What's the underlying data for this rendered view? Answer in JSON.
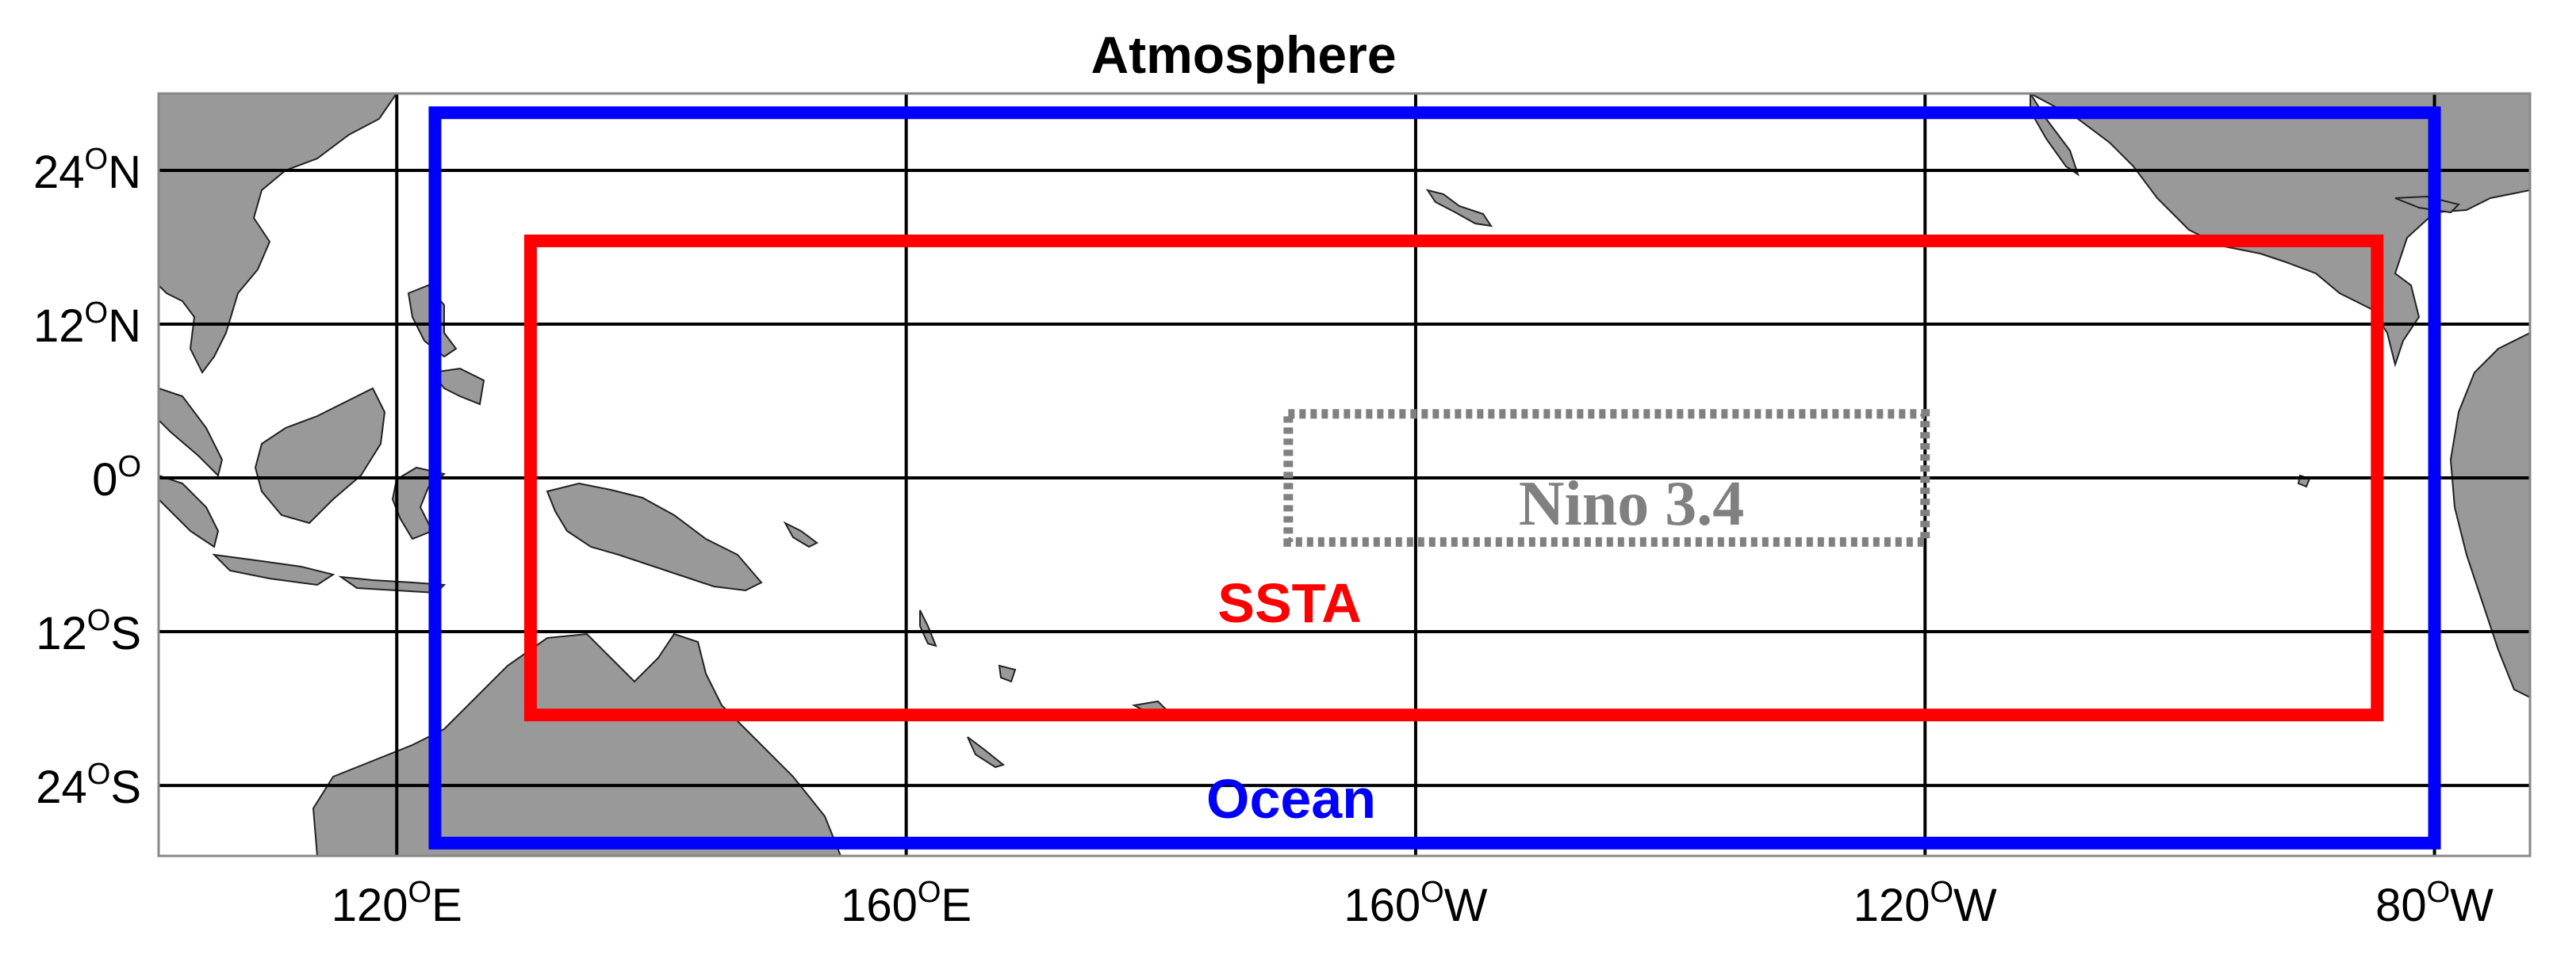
{
  "title": "Atmosphere",
  "lat_labels": [
    {
      "lat": 24,
      "deg": "24",
      "sup": "O",
      "hemi": "N"
    },
    {
      "lat": 12,
      "deg": "12",
      "sup": "O",
      "hemi": "N"
    },
    {
      "lat": 0,
      "deg": "0",
      "sup": "O",
      "hemi": ""
    },
    {
      "lat": -12,
      "deg": "12",
      "sup": "O",
      "hemi": "S"
    },
    {
      "lat": -24,
      "deg": "24",
      "sup": "O",
      "hemi": "S"
    }
  ],
  "lon_labels": [
    {
      "lon": 120,
      "deg": "120",
      "sup": "O",
      "hemi": "E"
    },
    {
      "lon": 160,
      "deg": "160",
      "sup": "O",
      "hemi": "E"
    },
    {
      "lon": 200,
      "deg": "160",
      "sup": "O",
      "hemi": "W"
    },
    {
      "lon": 240,
      "deg": "120",
      "sup": "O",
      "hemi": "W"
    },
    {
      "lon": 280,
      "deg": "80",
      "sup": "O",
      "hemi": "W"
    }
  ],
  "map_extent": {
    "lon_min": 101.3,
    "lon_max": 287.5,
    "lat_min": -29.5,
    "lat_max": 30
  },
  "regions": [
    {
      "id": "ocean",
      "label": "Ocean",
      "color": "#0000ff",
      "lon_min": 123,
      "lon_max": 280,
      "lat_min": -28.5,
      "lat_max": 28.5,
      "style": "solid"
    },
    {
      "id": "ssta",
      "label": "SSTA",
      "color": "#ff0000",
      "lon_min": 130.5,
      "lon_max": 275.5,
      "lat_min": -18.5,
      "lat_max": 18.5,
      "style": "solid"
    },
    {
      "id": "nino34",
      "label": "Nino 3.4",
      "color": "#808080",
      "lon_min": 190,
      "lon_max": 240,
      "lat_min": -5,
      "lat_max": 5,
      "style": "dotted"
    }
  ],
  "colors": {
    "land": "#999999",
    "coast": "#222222",
    "grid": "#000000",
    "frame": "#888888"
  }
}
